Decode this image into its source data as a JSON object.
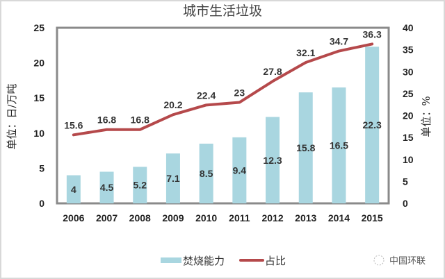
{
  "chart_data": {
    "type": "bar+line",
    "title": "城市生活垃圾",
    "categories": [
      "2006",
      "2007",
      "2008",
      "2009",
      "2010",
      "2011",
      "2012",
      "2013",
      "2014",
      "2015"
    ],
    "series": [
      {
        "name": "焚烧能力",
        "type": "bar",
        "axis": "left",
        "color": "#a9d6e0",
        "values": [
          4,
          4.5,
          5.2,
          7.1,
          8.5,
          9.4,
          12.3,
          15.8,
          16.5,
          22.3
        ]
      },
      {
        "name": "占比",
        "type": "line",
        "axis": "right",
        "color": "#b5494b",
        "values": [
          15.6,
          16.8,
          16.8,
          20.2,
          22.4,
          23,
          27.8,
          32.1,
          34.7,
          36.3
        ]
      }
    ],
    "ylabel_left": "单位：日/万吨",
    "ylabel_right": "单位：%",
    "ylim_left": [
      0,
      25
    ],
    "yticks_left": [
      "0",
      "5",
      "10",
      "15",
      "20",
      "25"
    ],
    "ylim_right": [
      0,
      40
    ],
    "yticks_right": [
      "0",
      "5",
      "10",
      "15",
      "20",
      "25",
      "30",
      "35",
      "40"
    ],
    "grid": false,
    "legend": "bottom"
  },
  "watermark": "中国环联"
}
